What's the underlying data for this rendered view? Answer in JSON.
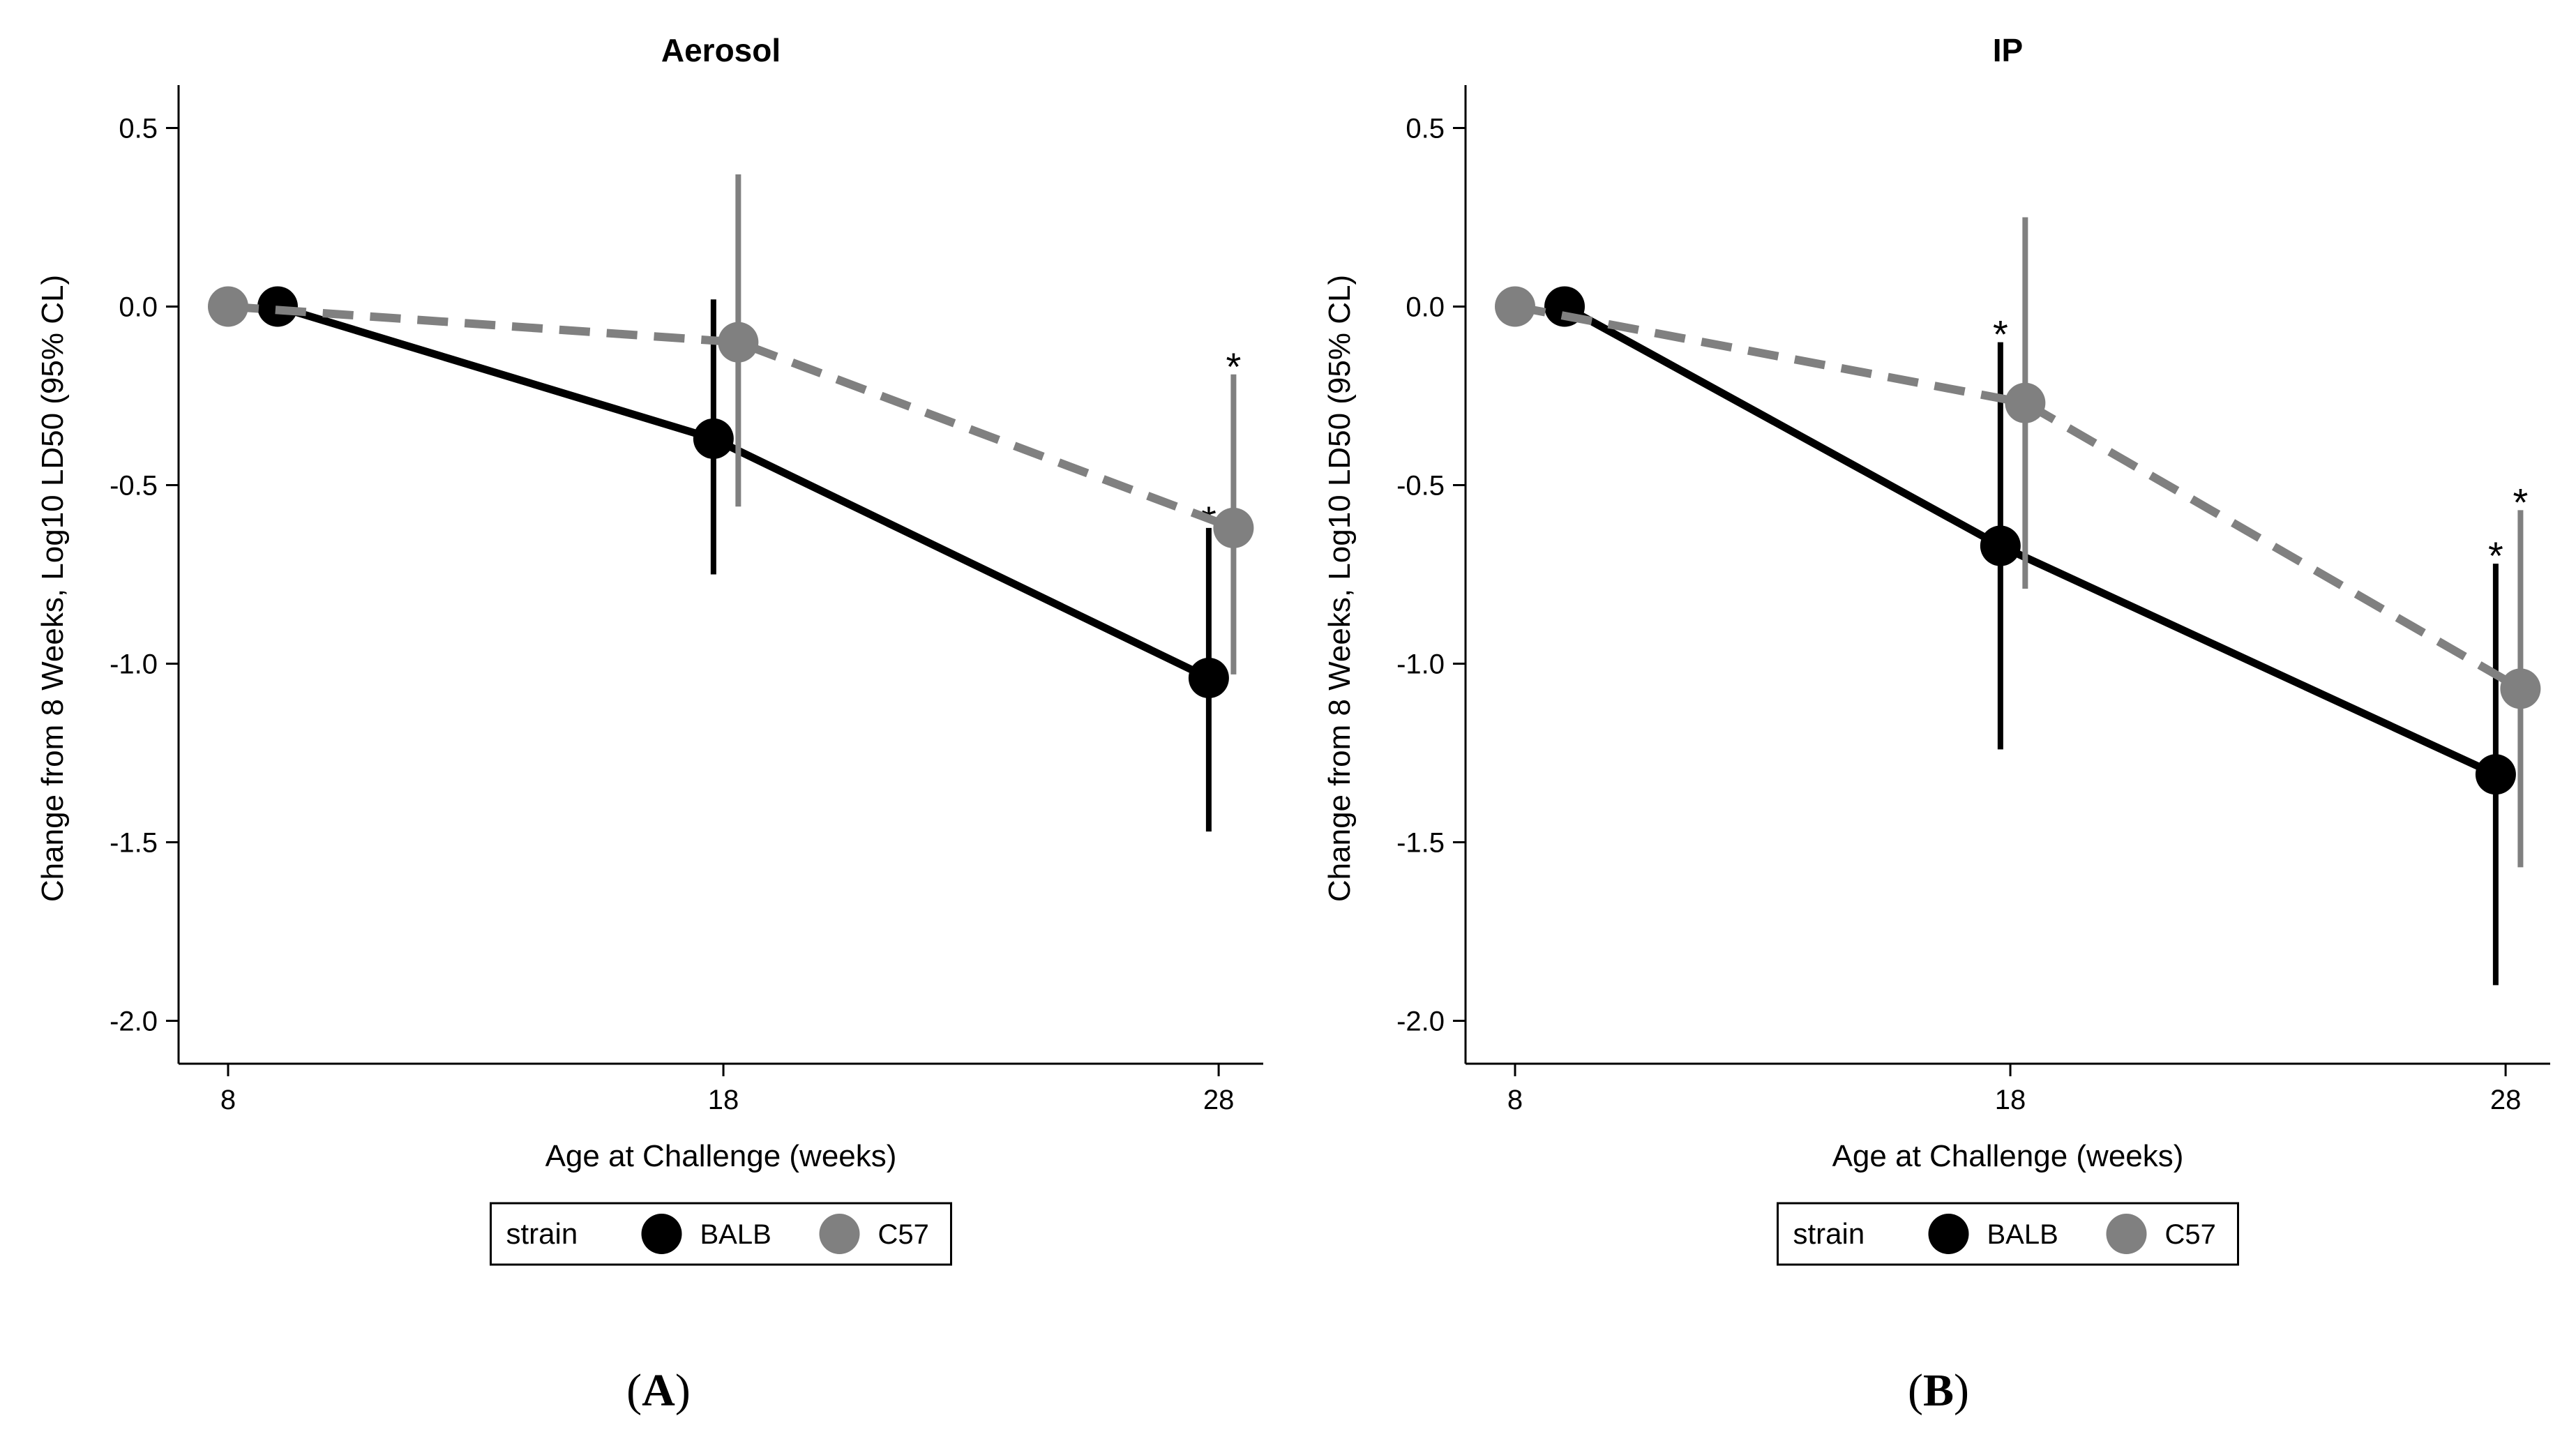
{
  "chart_data": [
    {
      "type": "line",
      "panel_label": "A",
      "title": "Aerosol",
      "xlabel": "Age at Challenge (weeks)",
      "ylabel": "Change from 8 Weeks, Log10 LD50 (95% CL)",
      "xticks": [
        8,
        18,
        28
      ],
      "yticks": [
        0.5,
        0.0,
        -0.5,
        -1.0,
        -1.5,
        -2.0
      ],
      "ytick_labels": [
        "0.5",
        "0.0",
        "-0.5",
        "-1.0",
        "-1.5",
        "-2.0"
      ],
      "xlim": [
        7.0,
        28.9
      ],
      "ylim": [
        -2.12,
        0.62
      ],
      "legend": {
        "title": "strain",
        "entries": [
          "BALB",
          "C57"
        ],
        "placement": "bottom-center"
      },
      "series": [
        {
          "name": "BALB",
          "color": "#000000",
          "dash": "solid",
          "x": [
            9,
            17.8,
            27.8
          ],
          "y": [
            0.0,
            -0.37,
            -1.04
          ],
          "lower": [
            null,
            -0.75,
            -1.47
          ],
          "upper": [
            null,
            0.02,
            -0.62
          ],
          "significant": [
            false,
            false,
            true
          ]
        },
        {
          "name": "C57",
          "color": "#808080",
          "dash": "dashed",
          "x": [
            8,
            18.3,
            28.3
          ],
          "y": [
            0.0,
            -0.1,
            -0.62
          ],
          "lower": [
            null,
            -0.56,
            -1.03
          ],
          "upper": [
            null,
            0.37,
            -0.19
          ],
          "significant": [
            false,
            false,
            true
          ]
        }
      ]
    },
    {
      "type": "line",
      "panel_label": "B",
      "title": "IP",
      "xlabel": "Age at Challenge (weeks)",
      "ylabel": "Change from 8 Weeks, Log10 LD50 (95% CL)",
      "xticks": [
        8,
        18,
        28
      ],
      "yticks": [
        0.5,
        0.0,
        -0.5,
        -1.0,
        -1.5,
        -2.0
      ],
      "ytick_labels": [
        "0.5",
        "0.0",
        "-0.5",
        "-1.0",
        "-1.5",
        "-2.0"
      ],
      "xlim": [
        7.0,
        28.9
      ],
      "ylim": [
        -2.12,
        0.62
      ],
      "legend": {
        "title": "strain",
        "entries": [
          "BALB",
          "C57"
        ],
        "placement": "bottom-center"
      },
      "series": [
        {
          "name": "BALB",
          "color": "#000000",
          "dash": "solid",
          "x": [
            9,
            17.8,
            27.8
          ],
          "y": [
            0.0,
            -0.67,
            -1.31
          ],
          "lower": [
            null,
            -1.24,
            -1.9
          ],
          "upper": [
            null,
            -0.1,
            -0.72
          ],
          "significant": [
            false,
            true,
            true
          ]
        },
        {
          "name": "C57",
          "color": "#808080",
          "dash": "dashed",
          "x": [
            8,
            18.3,
            28.3
          ],
          "y": [
            0.0,
            -0.27,
            -1.07
          ],
          "lower": [
            null,
            -0.79,
            -1.57
          ],
          "upper": [
            null,
            0.25,
            -0.57
          ],
          "significant": [
            false,
            false,
            true
          ]
        }
      ]
    }
  ]
}
